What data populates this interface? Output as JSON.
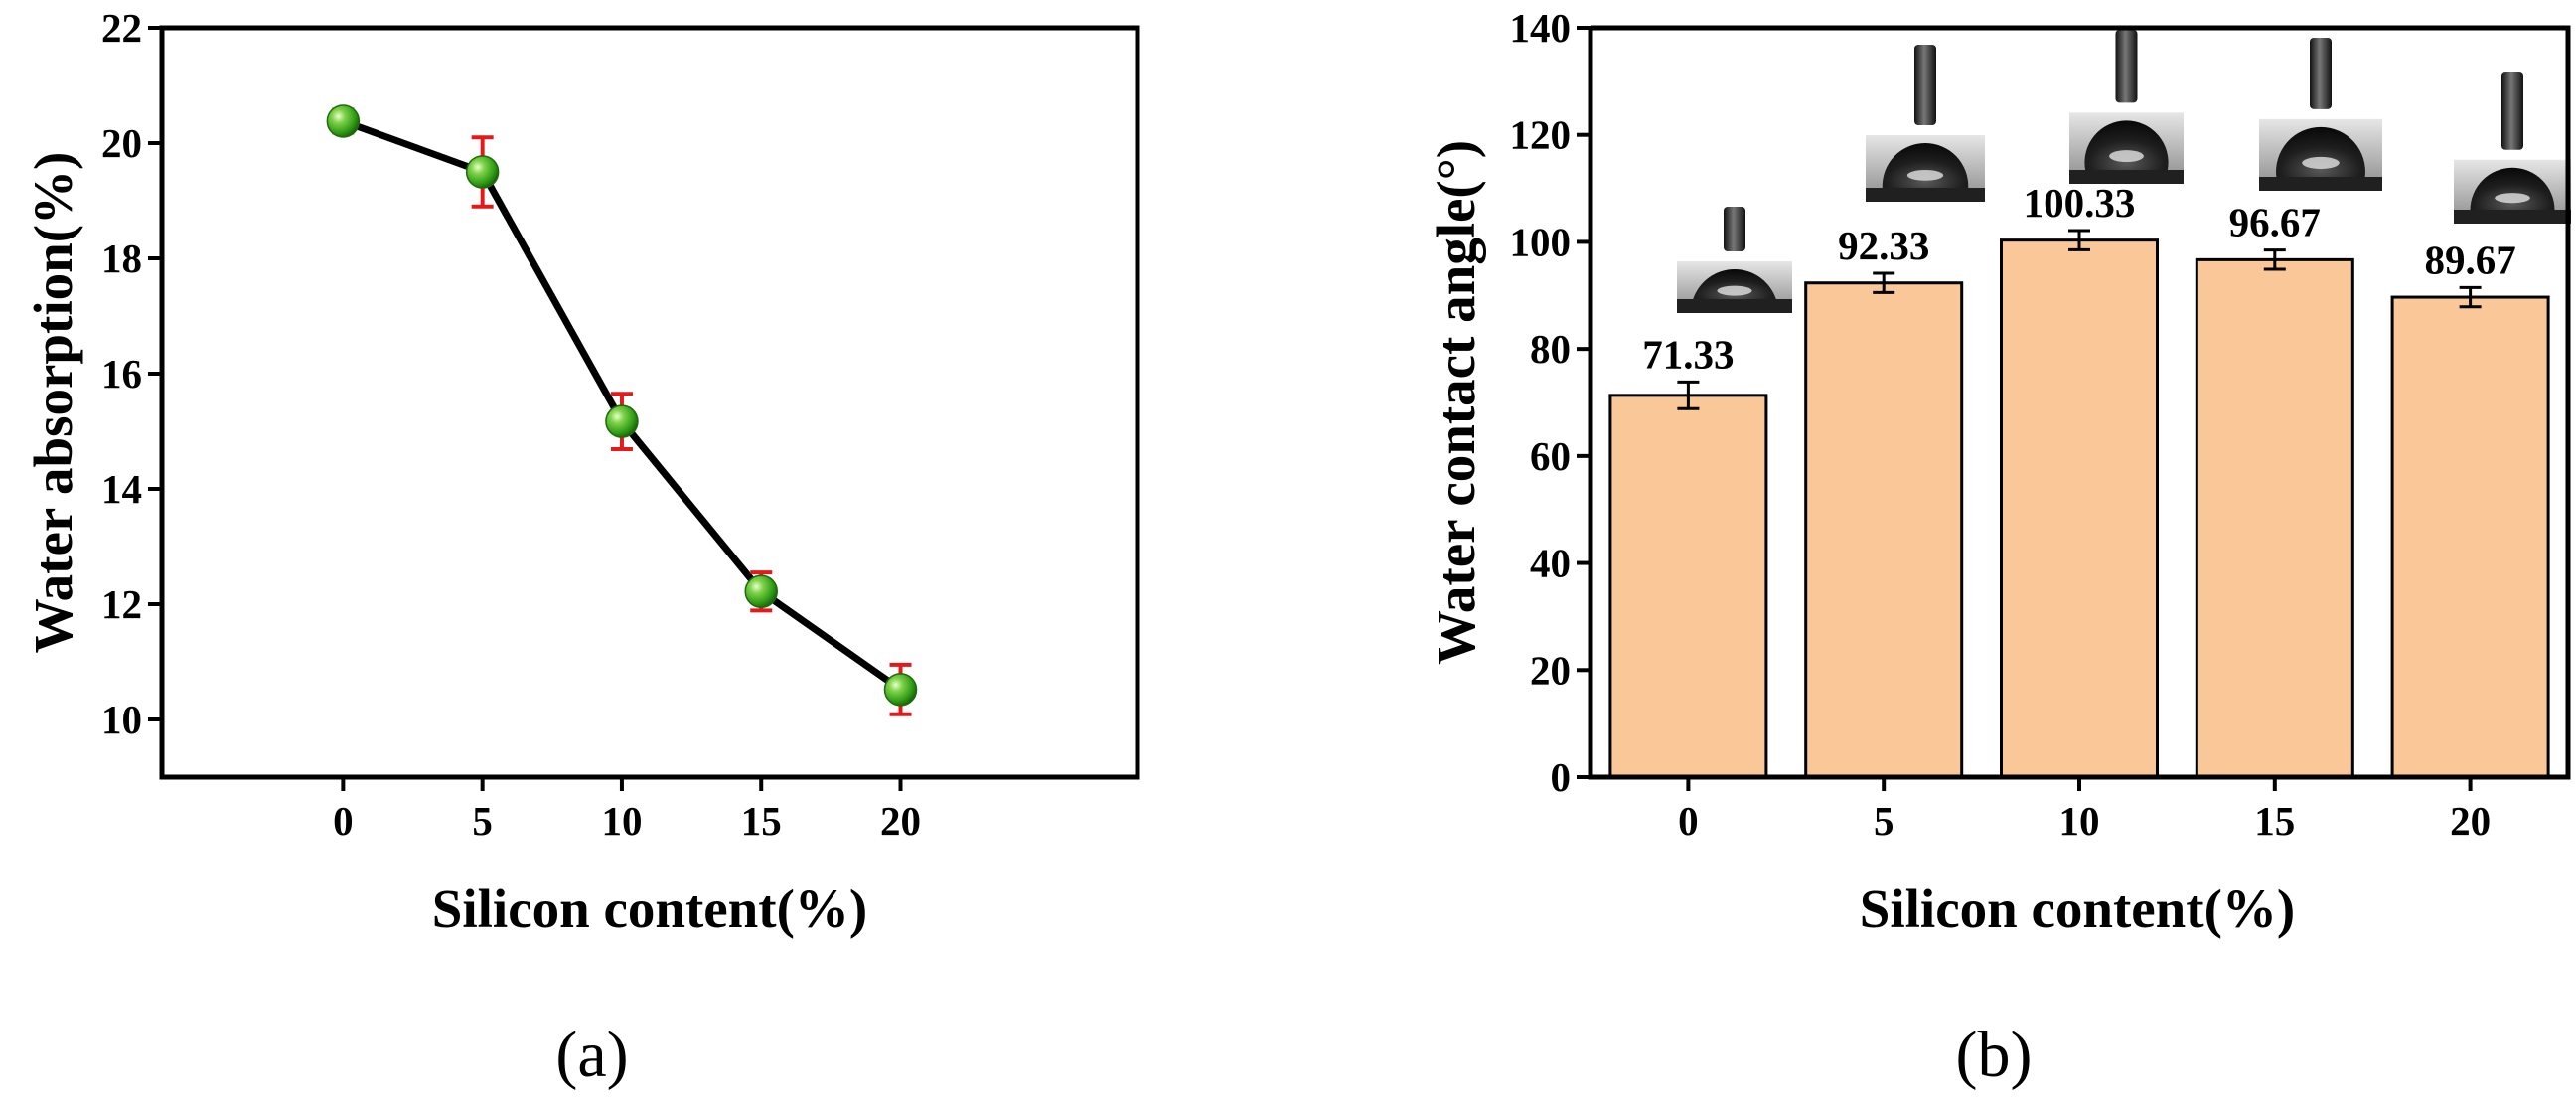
{
  "chart_data": [
    {
      "type": "line",
      "panel_label": "(a)",
      "title": "",
      "xlabel": "Silicon content(%)",
      "ylabel": "Water absorption(%)",
      "x": [
        0,
        5,
        10,
        15,
        20
      ],
      "x_tick_labels": [
        "0",
        "5",
        "10",
        "15",
        "20"
      ],
      "xlim": [
        -6.5,
        28.5
      ],
      "ylim": [
        9.0,
        22.0
      ],
      "y_ticks": [
        10,
        12,
        14,
        16,
        18,
        20,
        22
      ],
      "y_tick_labels": [
        "10",
        "12",
        "14",
        "16",
        "18",
        "20",
        "22"
      ],
      "series": [
        {
          "name": "Water absorption",
          "values": [
            20.38,
            19.5,
            15.17,
            12.22,
            10.52
          ],
          "errors": [
            0.2,
            0.6,
            0.48,
            0.33,
            0.43
          ],
          "line_color": "#000000",
          "marker_color": "#3aa81c",
          "error_color": "#e31a1c"
        }
      ],
      "grid": false,
      "legend": "none"
    },
    {
      "type": "bar",
      "panel_label": "(b)",
      "title": "",
      "xlabel": "Silicon content(%)",
      "ylabel": "Water contact angle(°)",
      "categories": [
        "0",
        "5",
        "10",
        "15",
        "20"
      ],
      "values": [
        71.33,
        92.33,
        100.33,
        96.67,
        89.67
      ],
      "value_labels": [
        "71.33",
        "92.33",
        "100.33",
        "96.67",
        "89.67"
      ],
      "errors": [
        2.5,
        1.8,
        1.8,
        1.8,
        1.8
      ],
      "ylim": [
        0,
        140
      ],
      "y_ticks": [
        0,
        20,
        40,
        60,
        80,
        100,
        120,
        140
      ],
      "y_tick_labels": [
        "0",
        "20",
        "40",
        "60",
        "80",
        "100",
        "120",
        "140"
      ],
      "bar_color": "#fac898",
      "bar_edge_color": "#000000",
      "grid": false,
      "legend": "none",
      "insets": "droplet contact-angle photos above each bar"
    }
  ]
}
